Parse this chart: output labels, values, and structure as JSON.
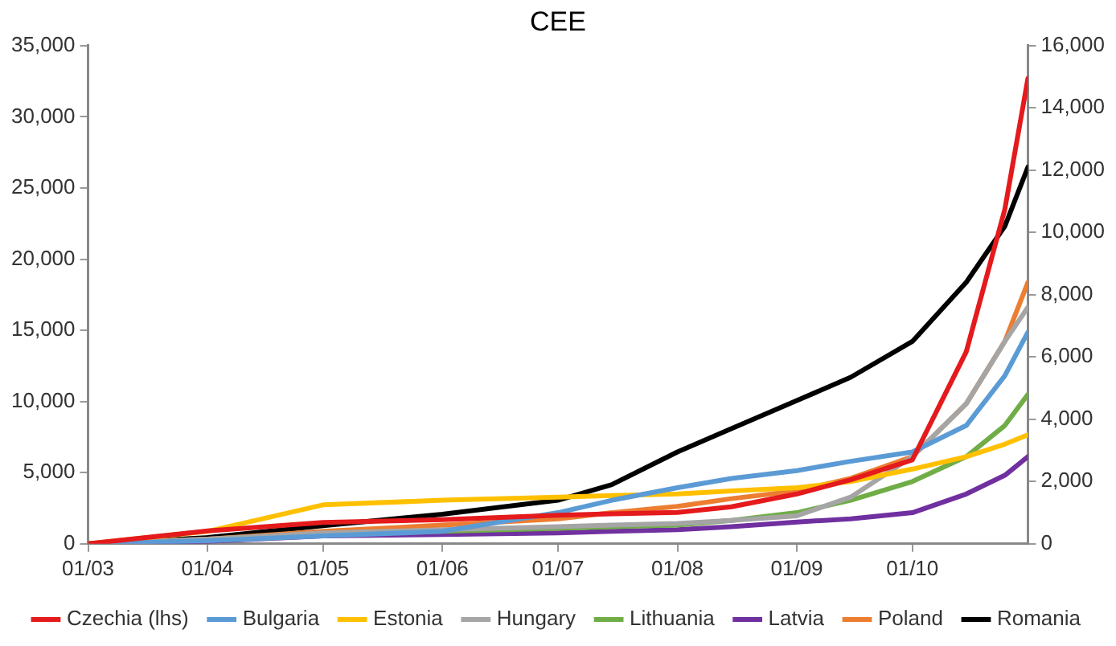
{
  "chart_data": {
    "type": "line",
    "title": "CEE",
    "x": [
      "--03-01",
      "--04-01",
      "--05-01",
      "--06-01",
      "--07-01",
      "--07-15",
      "--08-01",
      "--08-15",
      "--09-01",
      "--09-15",
      "--10-01",
      "--10-15",
      "--10-25",
      "--10-31"
    ],
    "series": [
      {
        "name": "Czechia (lhs)",
        "color": "#e41a1c",
        "values": [
          0,
          900,
          1500,
          1700,
          2000,
          2100,
          2200,
          2600,
          3500,
          4500,
          5900,
          13500,
          23500,
          32700
        ]
      },
      {
        "name": "Bulgaria",
        "color": "#5b9bd5",
        "axis": "y2",
        "values": [
          0,
          100,
          250,
          400,
          1000,
          1400,
          1800,
          2100,
          2350,
          2650,
          2950,
          3800,
          5400,
          6800
        ]
      },
      {
        "name": "Estonia",
        "color": "#ffc000",
        "axis": "y2",
        "values": [
          0,
          400,
          1250,
          1400,
          1500,
          1550,
          1600,
          1700,
          1800,
          2000,
          2400,
          2800,
          3200,
          3500
        ]
      },
      {
        "name": "Hungary",
        "color": "#a5a5a5",
        "axis": "y2",
        "values": [
          0,
          150,
          350,
          450,
          550,
          600,
          650,
          750,
          900,
          1500,
          2800,
          4500,
          6500,
          7600
        ]
      },
      {
        "name": "Lithuania",
        "color": "#70ad47",
        "axis": "y2",
        "values": [
          null,
          null,
          300,
          400,
          500,
          550,
          600,
          750,
          1000,
          1400,
          2000,
          2800,
          3800,
          4800
        ]
      },
      {
        "name": "Latvia",
        "color": "#7030a0",
        "axis": "y2",
        "values": [
          0,
          80,
          250,
          300,
          350,
          400,
          450,
          550,
          700,
          800,
          1000,
          1600,
          2200,
          2800
        ]
      },
      {
        "name": "Poland",
        "color": "#ed7d31",
        "axis": "y2",
        "values": [
          0,
          150,
          400,
          600,
          800,
          1000,
          1200,
          1450,
          1700,
          2100,
          2800,
          4500,
          6500,
          8400
        ]
      },
      {
        "name": "Romania",
        "color": "#000000",
        "axis": "y2",
        "values": [
          0,
          200,
          580,
          950,
          1400,
          1900,
          2950,
          3700,
          4600,
          5350,
          6500,
          8400,
          10200,
          12100
        ]
      }
    ],
    "xlim": [
      "--03-01",
      "--10-31"
    ],
    "xticks": [
      {
        "value": "--03-01",
        "label": "01/03"
      },
      {
        "value": "--04-01",
        "label": "01/04"
      },
      {
        "value": "--05-01",
        "label": "01/05"
      },
      {
        "value": "--06-01",
        "label": "01/06"
      },
      {
        "value": "--07-01",
        "label": "01/07"
      },
      {
        "value": "--08-01",
        "label": "01/08"
      },
      {
        "value": "--09-01",
        "label": "01/09"
      },
      {
        "value": "--10-01",
        "label": "01/10"
      }
    ],
    "ylim": [
      0,
      35000
    ],
    "yticks": [
      {
        "value": 0,
        "label": "0"
      },
      {
        "value": 5000,
        "label": "5,000"
      },
      {
        "value": 10000,
        "label": "10,000"
      },
      {
        "value": 15000,
        "label": "15,000"
      },
      {
        "value": 20000,
        "label": "20,000"
      },
      {
        "value": 25000,
        "label": "25,000"
      },
      {
        "value": 30000,
        "label": "30,000"
      },
      {
        "value": 35000,
        "label": "35,000"
      }
    ],
    "y2lim": [
      0,
      16000
    ],
    "y2ticks": [
      {
        "value": 0,
        "label": "0"
      },
      {
        "value": 2000,
        "label": "2,000"
      },
      {
        "value": 4000,
        "label": "4,000"
      },
      {
        "value": 6000,
        "label": "6,000"
      },
      {
        "value": 8000,
        "label": "8,000"
      },
      {
        "value": 10000,
        "label": "10,000"
      },
      {
        "value": 12000,
        "label": "12,000"
      },
      {
        "value": 14000,
        "label": "14,000"
      },
      {
        "value": 16000,
        "label": "16,000"
      }
    ],
    "grid": false,
    "legend": "bottom",
    "marker": "none",
    "line_style": "solid"
  }
}
